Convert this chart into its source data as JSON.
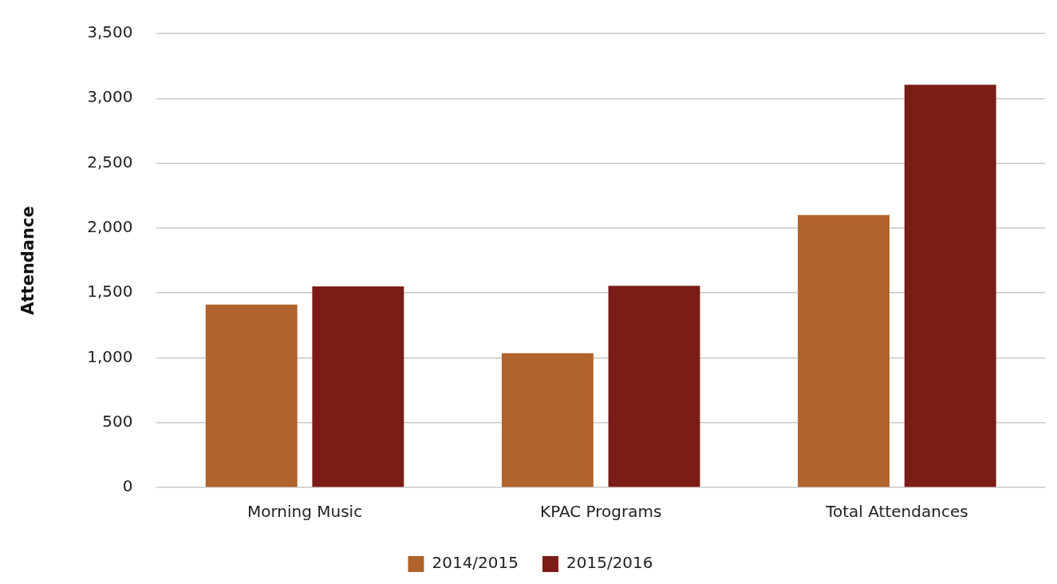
{
  "chart_data": {
    "type": "bar",
    "ylabel": "Attendance",
    "categories": [
      "Morning Music",
      "KPAC Programs",
      "Total Attendances"
    ],
    "series": [
      {
        "name": "2014/2015",
        "color": "#b0632a",
        "values": [
          1410,
          1035,
          2100
        ]
      },
      {
        "name": "2015/2016",
        "color": "#7b1c16",
        "values": [
          1550,
          1555,
          3105
        ]
      }
    ],
    "ylim": [
      0,
      3500
    ],
    "yticks": [
      {
        "value": 0,
        "label": "0"
      },
      {
        "value": 500,
        "label": "500"
      },
      {
        "value": 1000,
        "label": "1,000"
      },
      {
        "value": 1500,
        "label": "1,500"
      },
      {
        "value": 2000,
        "label": "2,000"
      },
      {
        "value": 2500,
        "label": "2,500"
      },
      {
        "value": 3000,
        "label": "3,000"
      },
      {
        "value": 3500,
        "label": "3,500"
      }
    ],
    "grid": "y",
    "legend": "bottom"
  }
}
